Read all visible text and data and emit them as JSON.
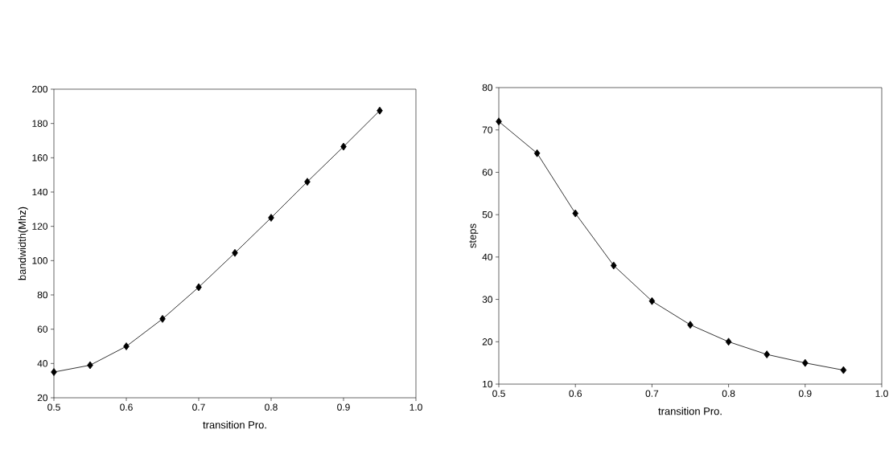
{
  "chart_data": [
    {
      "type": "line",
      "xlabel": "transition Pro.",
      "ylabel": "bandwidth(Mhz)",
      "marker": "diamond",
      "line_style": "solid",
      "x": [
        0.5,
        0.55,
        0.6,
        0.65,
        0.7,
        0.75,
        0.8,
        0.85,
        0.9,
        0.95
      ],
      "series": [
        {
          "color": "#000000",
          "values": [
            35,
            39,
            50,
            66,
            84.5,
            104.5,
            125,
            146,
            166.5,
            187.5
          ]
        }
      ],
      "xlim": [
        0.5,
        1.0
      ],
      "ylim": [
        20,
        200
      ],
      "xticks": [
        0.5,
        0.6,
        0.7,
        0.8,
        0.9,
        {
          "value": 1.0,
          "label": "1.0"
        }
      ],
      "yticks": [
        20,
        40,
        60,
        80,
        100,
        120,
        140,
        160,
        180,
        200
      ]
    },
    {
      "type": "line",
      "xlabel": "transition Pro.",
      "ylabel": "steps",
      "marker": "diamond",
      "line_style": "solid",
      "x": [
        0.5,
        0.55,
        0.6,
        0.65,
        0.7,
        0.75,
        0.8,
        0.85,
        0.9,
        0.95
      ],
      "series": [
        {
          "color": "#000000",
          "values": [
            72,
            64.5,
            50.3,
            38,
            29.6,
            24,
            20,
            17,
            15,
            13.3
          ]
        }
      ],
      "xlim": [
        0.5,
        1.0
      ],
      "ylim": [
        10,
        80
      ],
      "xticks": [
        0.5,
        0.6,
        0.7,
        0.8,
        0.9,
        {
          "value": 1.0,
          "label": "1.0"
        }
      ],
      "yticks": [
        10,
        20,
        30,
        40,
        50,
        60,
        70,
        80
      ]
    }
  ]
}
